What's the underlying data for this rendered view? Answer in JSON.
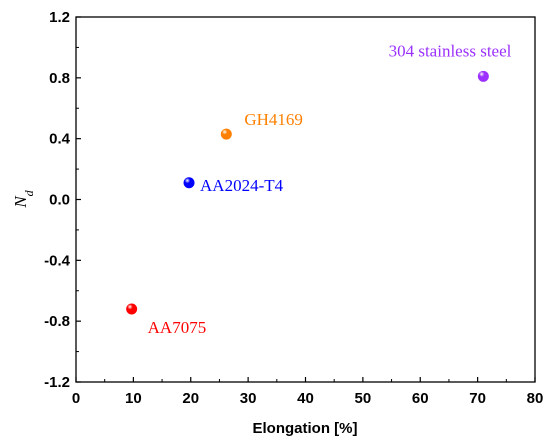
{
  "chart_data": {
    "type": "scatter",
    "title": "",
    "xlabel": "Elongation [%]",
    "ylabel_main": "N",
    "ylabel_sub": "d",
    "xlim": [
      0,
      80
    ],
    "ylim": [
      -1.2,
      1.2
    ],
    "x_ticks": [
      "0",
      "10",
      "20",
      "30",
      "40",
      "50",
      "60",
      "70",
      "80"
    ],
    "y_ticks": [
      "-1.2",
      "-0.8",
      "-0.4",
      "0.0",
      "0.4",
      "0.8",
      "1.2"
    ],
    "grid": false,
    "points": [
      {
        "label": "AA7075",
        "x": 9.7,
        "y": -0.72,
        "color": "#ff0000",
        "label_side": "below-right"
      },
      {
        "label": "AA2024-T4",
        "x": 19.7,
        "y": 0.11,
        "color": "#0000ff",
        "label_side": "right"
      },
      {
        "label": "GH4169",
        "x": 26.2,
        "y": 0.43,
        "color": "#ff8000",
        "label_side": "above-right"
      },
      {
        "label": "304 stainless steel",
        "x": 71.0,
        "y": 0.81,
        "color": "#9b30ff",
        "label_side": "above-left"
      }
    ]
  }
}
